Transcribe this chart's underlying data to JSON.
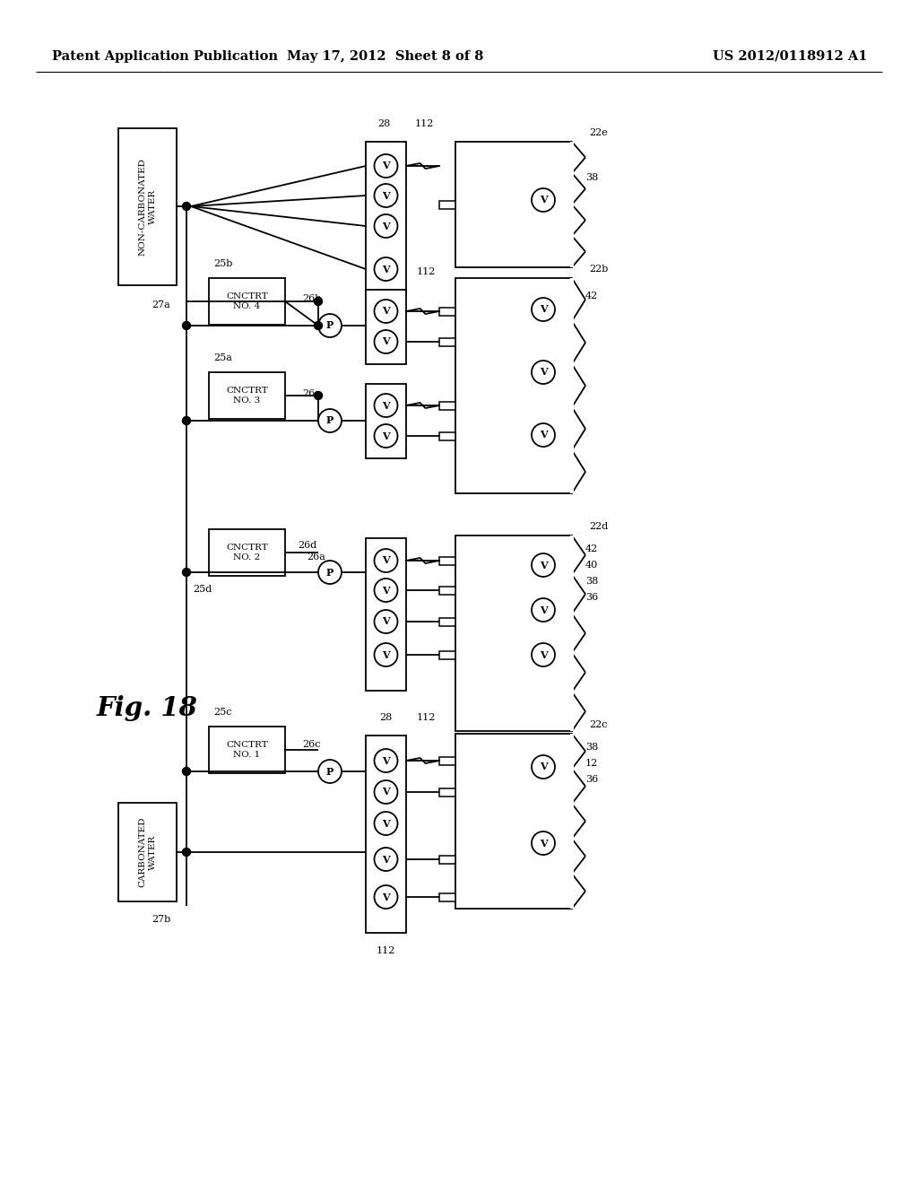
{
  "title_left": "Patent Application Publication",
  "title_mid": "May 17, 2012  Sheet 8 of 8",
  "title_right": "US 2012/0118912 A1",
  "fig_label": "Fig. 18",
  "background_color": "#ffffff",
  "line_color": "#000000",
  "header_fontsize": 10.5,
  "label_fontsize": 8.5
}
